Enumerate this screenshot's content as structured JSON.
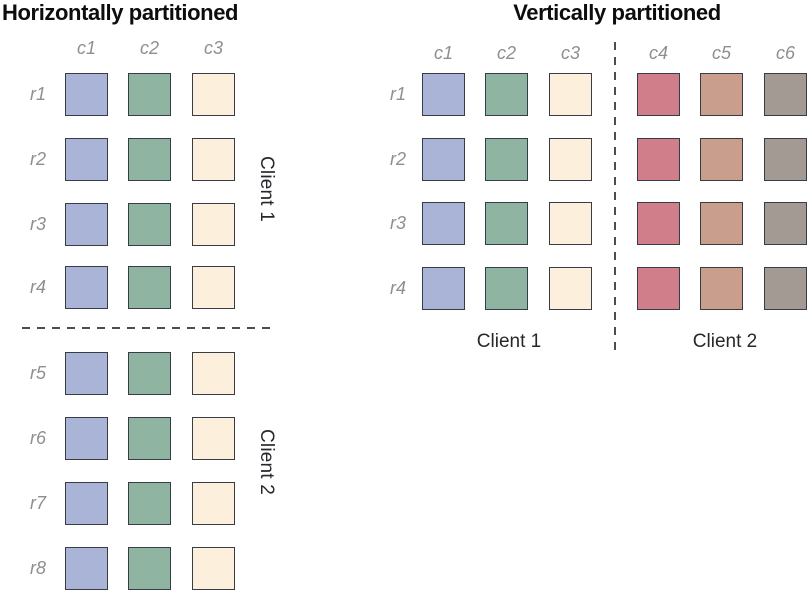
{
  "colors": {
    "title": "#0c0d0f",
    "axis_label": "#8d8f92",
    "client_label": "#26282b",
    "cell_border": "#383c46",
    "divider": "#4d4d4d",
    "cell_blue": "#a9b4d7",
    "cell_green": "#8fb4a2",
    "cell_cream": "#fcf0dd",
    "cell_rose": "#d07e8a",
    "cell_tan": "#c99e8c",
    "cell_gray": "#a39a94"
  },
  "panels": [
    {
      "title": "Horizontally partitioned",
      "columns": [
        {
          "label": "c1",
          "color": "#a9b4d7"
        },
        {
          "label": "c2",
          "color": "#8fb4a2"
        },
        {
          "label": "c3",
          "color": "#fcf0dd"
        }
      ],
      "rows": [
        "r1",
        "r2",
        "r3",
        "r4",
        "r5",
        "r6",
        "r7",
        "r8"
      ],
      "partition": {
        "orientation": "horizontal",
        "between": [
          "r4",
          "r5"
        ]
      },
      "clients": [
        {
          "label": "Client 1",
          "covers": [
            "r1",
            "r2",
            "r3",
            "r4"
          ]
        },
        {
          "label": "Client 2",
          "covers": [
            "r5",
            "r6",
            "r7",
            "r8"
          ]
        }
      ]
    },
    {
      "title": "Vertically partitioned",
      "columns": [
        {
          "label": "c1",
          "color": "#a9b4d7"
        },
        {
          "label": "c2",
          "color": "#8fb4a2"
        },
        {
          "label": "c3",
          "color": "#fcf0dd"
        },
        {
          "label": "c4",
          "color": "#d07e8a"
        },
        {
          "label": "c5",
          "color": "#c99e8c"
        },
        {
          "label": "c6",
          "color": "#a39a94"
        }
      ],
      "rows": [
        "r1",
        "r2",
        "r3",
        "r4"
      ],
      "partition": {
        "orientation": "vertical",
        "between": [
          "c3",
          "c4"
        ]
      },
      "clients": [
        {
          "label": "Client 1",
          "covers": [
            "c1",
            "c2",
            "c3"
          ]
        },
        {
          "label": "Client 2",
          "covers": [
            "c4",
            "c5",
            "c6"
          ]
        }
      ]
    }
  ]
}
